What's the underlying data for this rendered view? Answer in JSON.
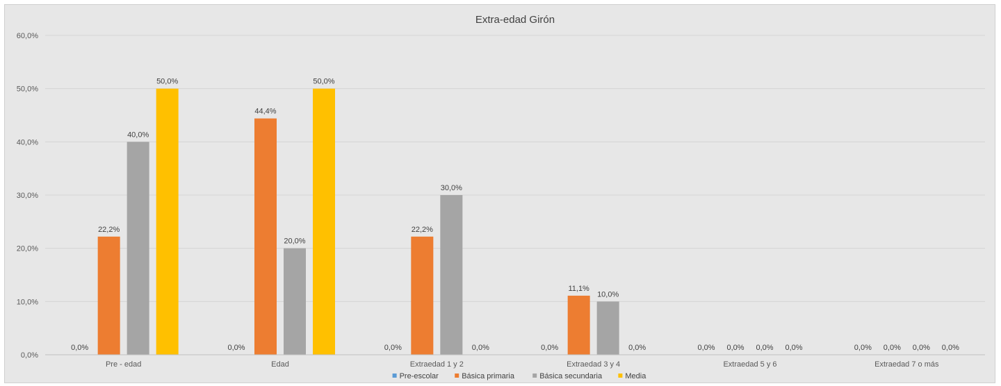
{
  "chart_data": {
    "type": "bar",
    "title": "Extra-edad Girón",
    "xlabel": "",
    "ylabel": "",
    "categories": [
      "Pre - edad",
      "Edad",
      "Extraedad 1 y 2",
      "Extraedad 3 y 4",
      "Extraedad 5 y 6",
      "Extraedad 7 o más"
    ],
    "series": [
      {
        "name": "Pre-escolar",
        "color": "#5b9bd5",
        "values": [
          0.0,
          0.0,
          0.0,
          0.0,
          0.0,
          0.0
        ],
        "labels": [
          "0,0%",
          "0,0%",
          "0,0%",
          "0,0%",
          "0,0%",
          "0,0%"
        ]
      },
      {
        "name": "Básica primaria",
        "color": "#ed7d31",
        "values": [
          22.2,
          44.4,
          22.2,
          11.1,
          0.0,
          0.0
        ],
        "labels": [
          "22,2%",
          "44,4%",
          "22,2%",
          "11,1%",
          "0,0%",
          "0,0%"
        ]
      },
      {
        "name": "Básica secundaria",
        "color": "#a5a5a5",
        "values": [
          40.0,
          20.0,
          30.0,
          10.0,
          0.0,
          0.0
        ],
        "labels": [
          "40,0%",
          "20,0%",
          "30,0%",
          "10,0%",
          "0,0%",
          "0,0%"
        ]
      },
      {
        "name": "Media",
        "color": "#ffc000",
        "values": [
          50.0,
          50.0,
          0.0,
          0.0,
          0.0,
          0.0
        ],
        "labels": [
          "50,0%",
          "50,0%",
          "0,0%",
          "0,0%",
          "0,0%",
          "0,0%"
        ]
      }
    ],
    "ylim": [
      0,
      60
    ],
    "yticks": [
      0,
      10,
      20,
      30,
      40,
      50,
      60
    ],
    "ytick_labels": [
      "0,0%",
      "10,0%",
      "20,0%",
      "30,0%",
      "40,0%",
      "50,0%",
      "60,0%"
    ],
    "grid": true,
    "legend": "bottom"
  }
}
